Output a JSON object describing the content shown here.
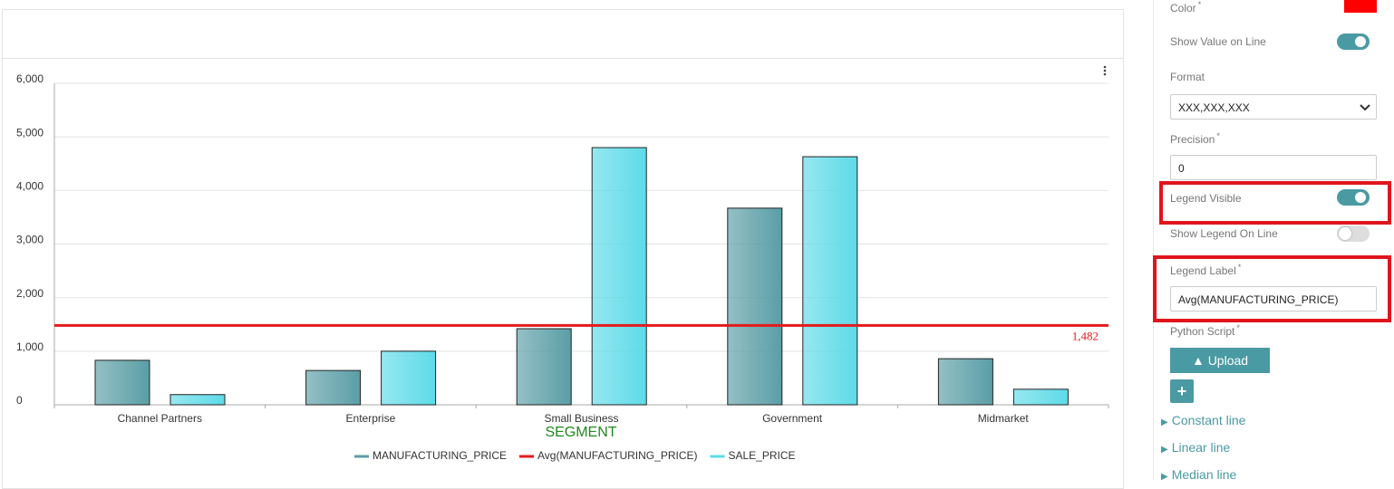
{
  "chart_data": {
    "type": "bar",
    "x_label": "SEGMENT",
    "categories": [
      "Channel Partners",
      "Enterprise",
      "Small Business",
      "Government",
      "Midmarket"
    ],
    "series": [
      {
        "name": "MANUFACTURING_PRICE",
        "color": "#5a9ea6",
        "values": [
          830,
          640,
          1420,
          3670,
          860
        ]
      },
      {
        "name": "SALE_PRICE",
        "color": "#5ddbe8",
        "values": [
          190,
          1000,
          4800,
          4630,
          290
        ]
      }
    ],
    "reference_lines": [
      {
        "name": "Avg(MANUFACTURING_PRICE)",
        "value": 1482,
        "value_label": "1,482",
        "color": "#e31b1b"
      }
    ],
    "ylim": [
      0,
      6000
    ],
    "yticks": [
      0,
      {
        "value": 1000,
        "label": "1,000"
      },
      {
        "value": 2000,
        "label": "2,000"
      },
      {
        "value": 3000,
        "label": "3,000"
      },
      {
        "value": 4000,
        "label": "4,000"
      },
      {
        "value": 5000,
        "label": "5,000"
      },
      {
        "value": 6000,
        "label": "6,000"
      }
    ],
    "grid": true
  },
  "panel": {
    "required_mark": "*",
    "color_label": "Color",
    "line_color": "#ff0000",
    "show_value_label": "Show Value on Line",
    "show_value_on": true,
    "format_label": "Format",
    "format_value": "XXX,XXX,XXX",
    "precision_label": "Precision",
    "precision_value": "0",
    "legend_visible_label": "Legend Visible",
    "legend_visible_on": true,
    "show_legend_label": "Show Legend On Line",
    "show_legend_on": false,
    "legend_label_label": "Legend Label",
    "legend_label_value": "Avg(MANUFACTURING_PRICE)",
    "python_label": "Python Script",
    "upload": "Upload",
    "add": "+",
    "sections": [
      "Constant line",
      "Linear line",
      "Median line"
    ]
  }
}
